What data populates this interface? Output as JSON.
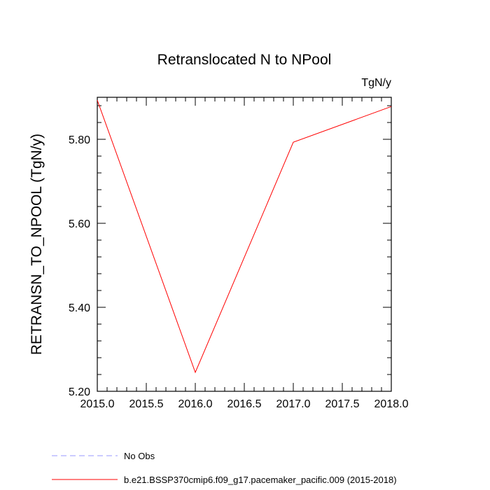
{
  "chart_data": {
    "type": "line",
    "title": "Retranslocated N to NPool",
    "units_label": "TgN/y",
    "xlabel": "",
    "ylabel": "RETRANSN_TO_NPOOL  (TgN/y)",
    "xlim": [
      2015.0,
      2018.0
    ],
    "ylim": [
      5.2,
      5.9
    ],
    "x_ticks": [
      "2015.0",
      "2015.5",
      "2016.0",
      "2016.5",
      "2017.0",
      "2017.5",
      "2018.0"
    ],
    "x_tick_values": [
      2015.0,
      2015.5,
      2016.0,
      2016.5,
      2017.0,
      2017.5,
      2018.0
    ],
    "y_ticks": [
      "5.20",
      "5.40",
      "5.60",
      "5.80"
    ],
    "y_tick_values": [
      5.2,
      5.4,
      5.6,
      5.8
    ],
    "grid": false,
    "legend_position": "bottom-left",
    "series": [
      {
        "name": "No Obs",
        "color": "#9999ff",
        "dash": "dashed",
        "x": [],
        "y": []
      },
      {
        "name": "b.e21.BSSP370cmip6.f09_g17.pacemaker_pacific.009 (2015-2018)",
        "color": "#ff0000",
        "dash": "solid",
        "x": [
          2015.0,
          2016.0,
          2017.0,
          2018.0
        ],
        "y": [
          5.893,
          5.245,
          5.793,
          5.878
        ]
      }
    ]
  }
}
